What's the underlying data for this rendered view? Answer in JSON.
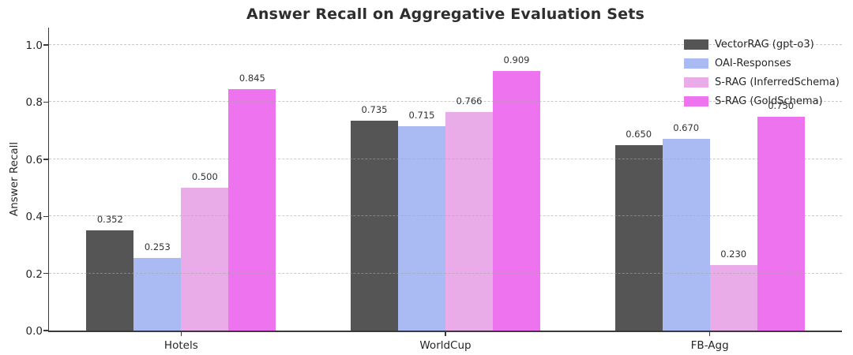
{
  "chart_data": {
    "type": "bar",
    "title": "Answer Recall on Aggregative Evaluation Sets",
    "xlabel": "",
    "ylabel": "Answer Recall",
    "categories": [
      "Hotels",
      "WorldCup",
      "FB-Agg"
    ],
    "series": [
      {
        "name": "VectorRAG (gpt-o3)",
        "color": "#555555",
        "values": [
          0.352,
          0.735,
          0.65
        ]
      },
      {
        "name": "OAI-Responses",
        "color": "#aabaf2",
        "values": [
          0.253,
          0.715,
          0.67
        ]
      },
      {
        "name": "S-RAG (InferredSchema)",
        "color": "#eaace8",
        "values": [
          0.5,
          0.766,
          0.23
        ]
      },
      {
        "name": "S-RAG (GoldSchema)",
        "color": "#ee73ee",
        "values": [
          0.845,
          0.909,
          0.75
        ]
      }
    ],
    "yticks": [
      0.0,
      0.2,
      0.4,
      0.6,
      0.8,
      1.0
    ],
    "ylim": [
      0.0,
      1.06
    ],
    "grid": "horizontal-dashed-over-bars",
    "legend_position": "upper-right",
    "value_label_decimals": 3,
    "axis_color": "#3a3a3a",
    "text_color": "#262626"
  }
}
